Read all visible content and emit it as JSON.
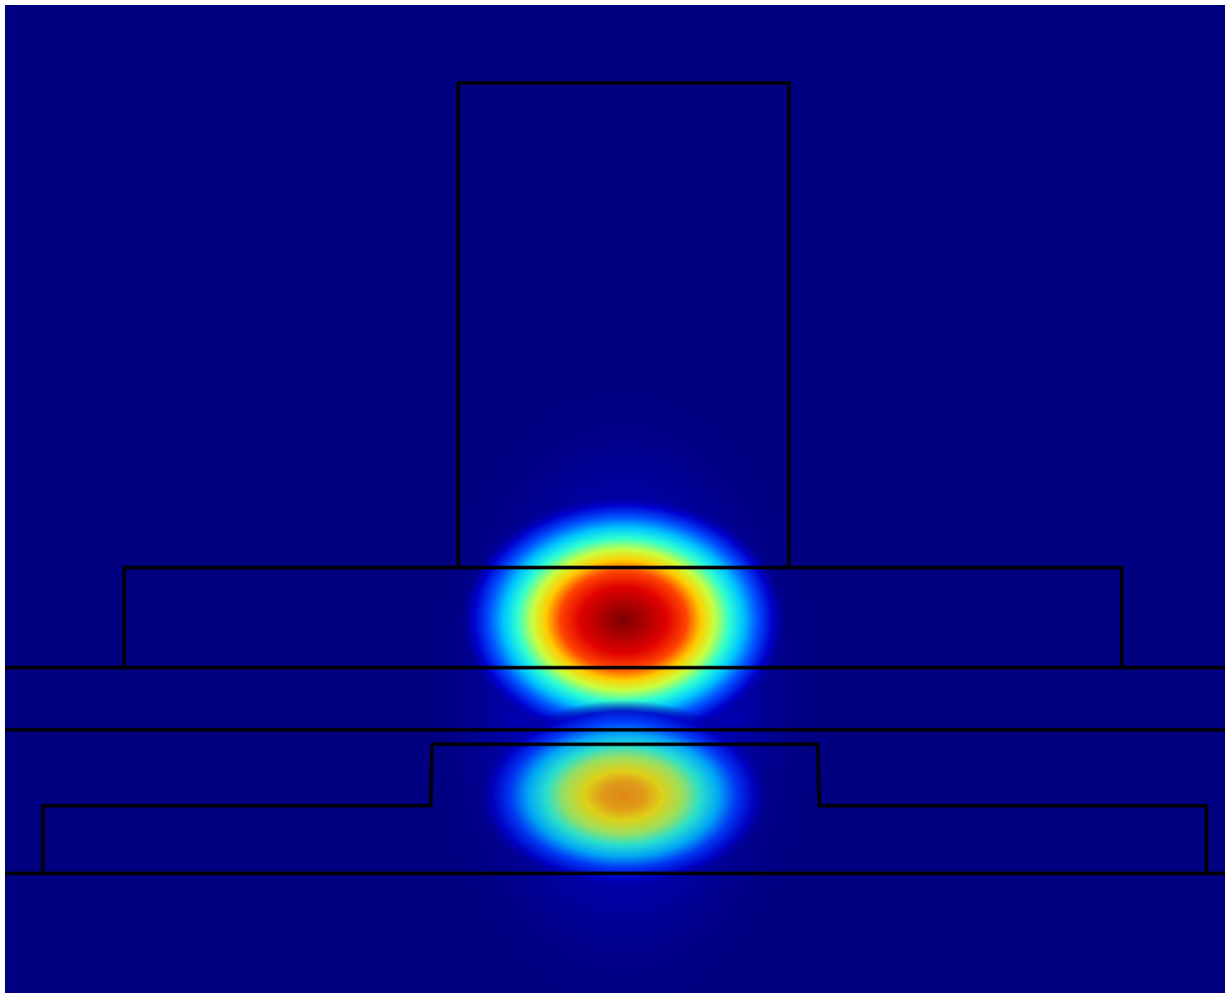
{
  "figure": {
    "description_free": true,
    "colormap": "jet",
    "background_color": "#000080",
    "outline_color": "#000000",
    "frame_color": "#ffffff"
  },
  "field": {
    "lobes": [
      {
        "name": "upper-mode-lobe",
        "peak_level": 1.0,
        "peak_color": "#800000"
      },
      {
        "name": "lower-mode-lobe",
        "peak_level": 0.72,
        "peak_color": "#ffa500"
      }
    ]
  }
}
